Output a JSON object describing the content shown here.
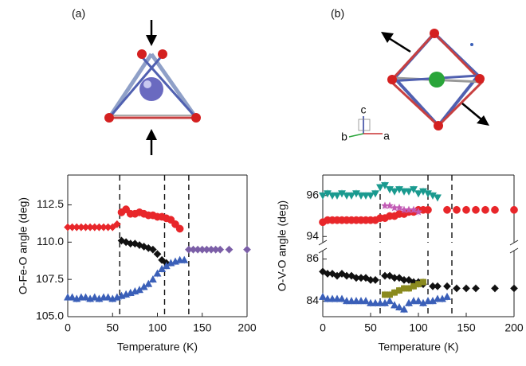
{
  "figure": {
    "panel_labels": [
      "(a)",
      "(b)"
    ],
    "axes_labels": [
      "c",
      "b",
      "a"
    ]
  },
  "chart_data": [
    {
      "type": "scatter",
      "xlabel": "Temperature (K)",
      "ylabel": "O-Fe-O angle (deg)",
      "xlim": [
        0,
        200
      ],
      "xticks": [
        0,
        50,
        100,
        150,
        200
      ],
      "ylim": [
        105,
        114.5
      ],
      "yticks": [
        {
          "value": 105,
          "label": "105.0"
        },
        {
          "value": 107.5,
          "label": "107.5"
        },
        {
          "value": 110,
          "label": "110.0"
        },
        {
          "value": 112.5,
          "label": "112.5"
        }
      ],
      "vlines": [
        58,
        108,
        135
      ],
      "series": [
        {
          "color": "#e8262a",
          "marker": "diamond",
          "x": [
            0,
            5,
            10,
            15,
            20,
            25,
            30,
            35,
            40,
            45,
            50,
            55
          ],
          "values": [
            111,
            111,
            111,
            111,
            111,
            111,
            111,
            111,
            111,
            111,
            111,
            111.2
          ]
        },
        {
          "color": "#e8262a",
          "marker": "circle",
          "x": [
            60,
            65,
            70,
            75,
            80,
            85,
            90,
            95,
            100,
            105,
            110,
            115,
            120,
            125
          ],
          "values": [
            112,
            112.2,
            111.9,
            111.9,
            112,
            111.9,
            111.8,
            111.8,
            111.7,
            111.7,
            111.6,
            111.5,
            111.2,
            110.9
          ]
        },
        {
          "color": "#111111",
          "marker": "diamond",
          "x": [
            60,
            65,
            70,
            75,
            80,
            85,
            90,
            95,
            100,
            105,
            110
          ],
          "values": [
            110.1,
            110,
            109.9,
            109.9,
            109.8,
            109.7,
            109.6,
            109.5,
            109.2,
            108.8,
            108.6
          ]
        },
        {
          "color": "#3a5fb8",
          "marker": "triangle",
          "x": [
            0,
            5,
            10,
            15,
            20,
            25,
            30,
            35,
            40,
            45,
            50,
            55,
            60,
            65,
            70,
            75,
            80,
            85,
            90,
            95,
            100,
            105,
            110,
            115,
            120,
            125,
            130
          ],
          "values": [
            106.3,
            106.3,
            106.2,
            106.3,
            106.3,
            106.2,
            106.3,
            106.2,
            106.3,
            106.3,
            106.2,
            106.3,
            106.4,
            106.5,
            106.6,
            106.7,
            106.8,
            107,
            107.2,
            107.5,
            107.9,
            108.2,
            108.4,
            108.6,
            108.7,
            108.8,
            108.8
          ]
        },
        {
          "color": "#7b5ea7",
          "marker": "diamond",
          "x": [
            135,
            140,
            145,
            150,
            155,
            160,
            165,
            170,
            180,
            200
          ],
          "values": [
            109.5,
            109.5,
            109.5,
            109.5,
            109.5,
            109.5,
            109.5,
            109.5,
            109.5,
            109.5
          ]
        }
      ]
    },
    {
      "type": "scatter",
      "ylabel": "O-V-O angle (deg)",
      "xlim": [
        0,
        200
      ],
      "ylim": [
        93.7,
        97
      ],
      "yticks": [
        94,
        96
      ],
      "vlines": [
        60,
        110,
        135
      ],
      "series": [
        {
          "color": "#1a9a8f",
          "marker": "triangle-down",
          "x": [
            0,
            5,
            10,
            15,
            20,
            25,
            30,
            35,
            40,
            45,
            50,
            55,
            60,
            65,
            70,
            75,
            80,
            85,
            90,
            95,
            100,
            105,
            110,
            115,
            120
          ],
          "values": [
            96,
            96.1,
            96,
            96,
            96.1,
            96,
            96,
            96.1,
            96,
            96,
            96,
            96.1,
            96.4,
            96.5,
            96.3,
            96.2,
            96.3,
            96.2,
            96.2,
            96.3,
            96.1,
            96.2,
            96.1,
            96,
            95.9
          ]
        },
        {
          "color": "#e8262a",
          "marker": "circle",
          "x": [
            0,
            5,
            10,
            15,
            20,
            25,
            30,
            35,
            40,
            45,
            50,
            55,
            60,
            65,
            70,
            75,
            80,
            85,
            90,
            95,
            100,
            105,
            110,
            130,
            140,
            150,
            160,
            170,
            180,
            200
          ],
          "values": [
            94.7,
            94.8,
            94.8,
            94.8,
            94.8,
            94.8,
            94.8,
            94.8,
            94.8,
            94.8,
            94.8,
            94.8,
            94.9,
            94.9,
            95,
            95,
            95.1,
            95.1,
            95.2,
            95.2,
            95.3,
            95.3,
            95.3,
            95.3,
            95.3,
            95.3,
            95.3,
            95.3,
            95.3,
            95.3
          ]
        },
        {
          "color": "#c25ab5",
          "marker": "star",
          "x": [
            65,
            70,
            75,
            80,
            85,
            90,
            95,
            100
          ],
          "values": [
            95.5,
            95.5,
            95.4,
            95.4,
            95.3,
            95.3,
            95.3,
            95.2
          ]
        }
      ]
    },
    {
      "type": "scatter",
      "xlabel": "Temperature (K)",
      "xlim": [
        0,
        200
      ],
      "xticks": [
        0,
        50,
        100,
        150,
        200
      ],
      "ylim": [
        83.25,
        86.4
      ],
      "yticks": [
        84,
        86
      ],
      "vlines": [
        60,
        110,
        135
      ],
      "series": [
        {
          "color": "#111111",
          "marker": "diamond",
          "x": [
            0,
            5,
            10,
            15,
            20,
            25,
            30,
            35,
            40,
            45,
            50,
            55,
            65,
            70,
            75,
            80,
            85,
            90,
            95,
            100,
            105,
            115,
            120,
            130,
            140,
            150,
            160,
            180,
            200
          ],
          "values": [
            85.4,
            85.3,
            85.3,
            85.2,
            85.3,
            85.2,
            85.2,
            85.1,
            85.1,
            85.1,
            85.0,
            85.0,
            85.2,
            85.2,
            85.1,
            85.1,
            85.0,
            85.0,
            84.9,
            84.9,
            84.8,
            84.7,
            84.7,
            84.7,
            84.6,
            84.6,
            84.6,
            84.6,
            84.6
          ]
        },
        {
          "color": "#3a5fb8",
          "marker": "triangle",
          "x": [
            0,
            5,
            10,
            15,
            20,
            25,
            30,
            35,
            40,
            45,
            50,
            55,
            60,
            65,
            70,
            75,
            80,
            85,
            90,
            95,
            100,
            105,
            110,
            115,
            120,
            125,
            130
          ],
          "values": [
            84.2,
            84.1,
            84.1,
            84.1,
            84.1,
            84.0,
            84.0,
            84.0,
            84.0,
            84.0,
            83.9,
            83.9,
            83.9,
            83.9,
            84.0,
            83.8,
            83.7,
            83.6,
            83.9,
            84.0,
            84.0,
            83.9,
            84.0,
            84.0,
            84.1,
            84.1,
            84.2
          ]
        },
        {
          "color": "#8a8a1e",
          "marker": "square",
          "x": [
            65,
            70,
            75,
            80,
            85,
            90,
            95,
            100,
            105
          ],
          "values": [
            84.3,
            84.3,
            84.4,
            84.5,
            84.6,
            84.6,
            84.7,
            84.8,
            84.9
          ]
        }
      ]
    }
  ]
}
